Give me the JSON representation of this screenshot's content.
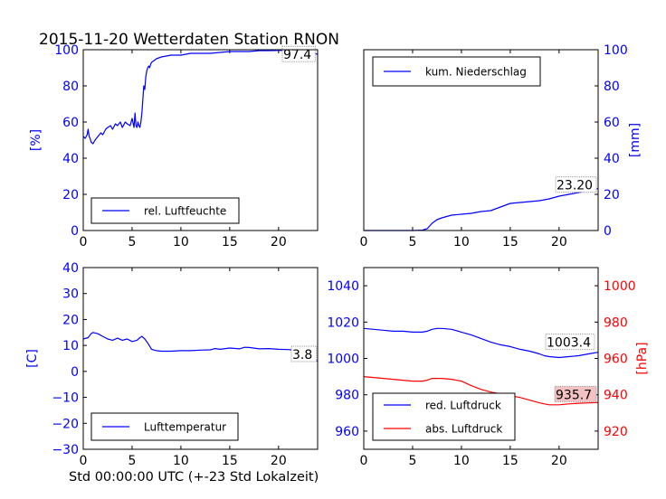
{
  "figure": {
    "title": "2015-11-20 Wetterdaten Station RNON",
    "xlabel": "Std 00:00:00 UTC (+-23 Std Lokalzeit)"
  },
  "chart_data": [
    {
      "id": "humidity",
      "type": "line",
      "title": "",
      "xlabel": "",
      "ylabel": "[%]",
      "xlim": [
        0,
        24
      ],
      "ylim": [
        0,
        100
      ],
      "xticks": [
        0,
        5,
        10,
        15,
        20
      ],
      "yticks": [
        0,
        20,
        40,
        60,
        80,
        100
      ],
      "ytick_color": "#0000ff",
      "legend_position": "lower-left",
      "annotation": "97.4",
      "series": [
        {
          "name": "rel. Luftfeuchte",
          "color": "#0000ff",
          "x": [
            0,
            0.2,
            0.4,
            0.5,
            0.6,
            0.7,
            0.8,
            1.0,
            1.2,
            1.5,
            1.8,
            2.0,
            2.3,
            2.5,
            2.8,
            3.0,
            3.3,
            3.5,
            3.8,
            4.0,
            4.3,
            4.5,
            4.8,
            5.0,
            5.2,
            5.3,
            5.4,
            5.5,
            5.6,
            5.7,
            5.8,
            5.9,
            6.0,
            6.1,
            6.2,
            6.3,
            6.4,
            6.5,
            6.6,
            6.7,
            6.8,
            6.9,
            7.0,
            7.5,
            8.0,
            9.0,
            10.0,
            11.0,
            12.0,
            13.0,
            14.0,
            15.0,
            16.0,
            17.0,
            18.0,
            19.0,
            20.0,
            21.0,
            22.0,
            23.0,
            24.0
          ],
          "values": [
            52,
            51,
            53,
            56,
            52,
            51,
            49,
            48,
            50,
            52,
            54,
            53,
            56,
            57,
            58,
            56,
            59,
            58,
            60,
            57,
            60,
            59,
            58,
            62,
            57,
            65,
            58,
            57,
            60,
            58,
            57,
            60,
            65,
            72,
            80,
            78,
            85,
            88,
            90,
            91,
            90,
            92,
            93,
            95,
            96,
            97,
            97,
            98,
            98,
            98,
            98.5,
            99,
            99,
            99,
            99.5,
            99.5,
            99.6,
            99.7,
            99.7,
            99.5,
            97.4
          ]
        }
      ]
    },
    {
      "id": "precip",
      "type": "line",
      "title": "",
      "xlabel": "",
      "ylabel": "[mm]",
      "xlim": [
        0,
        24
      ],
      "ylim": [
        0,
        100
      ],
      "xticks": [
        0,
        5,
        10,
        15,
        20
      ],
      "yticks": [
        0,
        20,
        40,
        60,
        80,
        100
      ],
      "ytick_color": "#0000ff",
      "legend_position": "upper-left",
      "annotation": "23.20",
      "series": [
        {
          "name": "kum. Niederschlag",
          "color": "#0000ff",
          "x": [
            0,
            5,
            6,
            6.5,
            7,
            7.5,
            8,
            9,
            10,
            11,
            12,
            13,
            14,
            15,
            16,
            17,
            18,
            19,
            20,
            21,
            22,
            23,
            24
          ],
          "values": [
            0,
            0,
            0.2,
            1,
            4,
            6,
            7,
            8.5,
            9,
            9.5,
            10.5,
            11,
            13,
            15,
            15.5,
            16,
            16.5,
            17.5,
            19,
            20,
            21,
            22,
            23.2
          ]
        }
      ]
    },
    {
      "id": "temperature",
      "type": "line",
      "title": "",
      "xlabel": "",
      "ylabel": "[C]",
      "xlim": [
        0,
        24
      ],
      "ylim": [
        -30,
        40
      ],
      "xticks": [
        0,
        5,
        10,
        15,
        20
      ],
      "yticks": [
        -30,
        -20,
        -10,
        0,
        10,
        20,
        30,
        40
      ],
      "ytick_color": "#0000ff",
      "legend_position": "lower-left",
      "annotation": "3.8",
      "series": [
        {
          "name": "Lufttemperatur",
          "color": "#0000ff",
          "x": [
            0,
            0.5,
            0.8,
            1.0,
            1.5,
            2.0,
            2.5,
            3.0,
            3.5,
            4.0,
            4.5,
            5.0,
            5.5,
            5.8,
            6.0,
            6.3,
            6.6,
            7.0,
            7.5,
            8.0,
            9.0,
            10.0,
            11.0,
            12.0,
            13.0,
            13.5,
            14.0,
            15.0,
            16.0,
            16.5,
            17.0,
            18.0,
            19.0,
            20.0,
            21.0,
            22.0,
            23.0,
            24.0
          ],
          "values": [
            12.5,
            13,
            14.5,
            15,
            14.5,
            13.5,
            12.5,
            12,
            12.8,
            12,
            12.5,
            11.5,
            12,
            13,
            13.5,
            12.5,
            11,
            8.5,
            8,
            7.8,
            7.8,
            8,
            8,
            8.2,
            8.3,
            8.8,
            8.5,
            9,
            8.7,
            9.3,
            9.2,
            8.7,
            8.8,
            8.5,
            8.4,
            8,
            7,
            3.8
          ]
        }
      ]
    },
    {
      "id": "pressure",
      "type": "line",
      "title": "",
      "xlabel": "",
      "ylabel": "[hPa]",
      "xlim": [
        0,
        24
      ],
      "ylim": [
        950,
        1050
      ],
      "ylim_right": [
        910,
        1010
      ],
      "xticks": [
        0,
        5,
        10,
        15,
        20
      ],
      "yticks": [
        960,
        980,
        1000,
        1020,
        1040
      ],
      "yticks_right": [
        920,
        940,
        960,
        980,
        1000
      ],
      "ytick_color": "#0000ff",
      "ytick_color_right": "#ff0000",
      "legend_position": "lower-left",
      "annotation_left_series": "1003.4",
      "annotation_right_series": "935.7",
      "series": [
        {
          "name": "red. Luftdruck",
          "axis": "left",
          "color": "#0000ff",
          "x": [
            0,
            1,
            2,
            3,
            4,
            5,
            6,
            6.5,
            7,
            7.5,
            8,
            9,
            10,
            11,
            12,
            13,
            14,
            15,
            16,
            17,
            18,
            18.5,
            19,
            20,
            21,
            22,
            23,
            24
          ],
          "values": [
            1016.5,
            1016,
            1015.5,
            1015,
            1015,
            1014.5,
            1014.5,
            1015,
            1016,
            1016.5,
            1016.5,
            1016,
            1014.5,
            1013,
            1011,
            1009,
            1007.5,
            1006.5,
            1005,
            1004,
            1002.5,
            1001.5,
            1001,
            1000.5,
            1001,
            1001.5,
            1002.5,
            1003.4
          ]
        },
        {
          "name": "abs. Luftdruck",
          "axis": "right",
          "color": "#ff0000",
          "x": [
            0,
            1,
            2,
            3,
            4,
            5,
            6,
            6.5,
            7,
            7.5,
            8,
            9,
            10,
            11,
            12,
            13,
            14,
            15,
            16,
            17,
            18,
            18.5,
            19,
            20,
            21,
            22,
            23,
            24
          ],
          "values": [
            950,
            949.5,
            949,
            948.5,
            948,
            947.5,
            947.5,
            948,
            949,
            949,
            949,
            948.5,
            947.5,
            945,
            943,
            941.5,
            940.5,
            939.5,
            938.5,
            937,
            935.5,
            935,
            934.5,
            934.5,
            935,
            935.3,
            935.5,
            935.7
          ]
        }
      ]
    }
  ]
}
